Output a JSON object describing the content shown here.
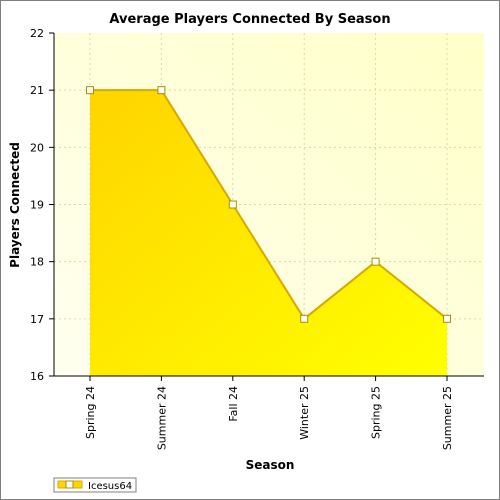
{
  "chart_data": {
    "type": "area",
    "title": "Average Players Connected By Season",
    "xlabel": "Season",
    "ylabel": "Players Connected",
    "categories": [
      "Spring 24",
      "Summer 24",
      "Fall 24",
      "Winter 25",
      "Spring 25",
      "Summer 25"
    ],
    "series": [
      {
        "name": "Icesus64",
        "values": [
          21,
          21,
          19,
          17,
          18,
          17
        ]
      }
    ],
    "ylim": [
      16,
      22
    ],
    "yticks": [
      "16",
      "17",
      "18",
      "19",
      "20",
      "21",
      "22"
    ],
    "grid": true,
    "legend_position": "bottom-left",
    "colors": {
      "plot_bg_start": "#fffff0",
      "plot_bg_end": "#ffffc8",
      "area_start": "#ffd400",
      "area_end": "#ffff00",
      "line": "#d9a800",
      "marker_fill": "#ffffff",
      "marker_stroke": "#b38a00",
      "grid": "#d9d9b0"
    }
  }
}
